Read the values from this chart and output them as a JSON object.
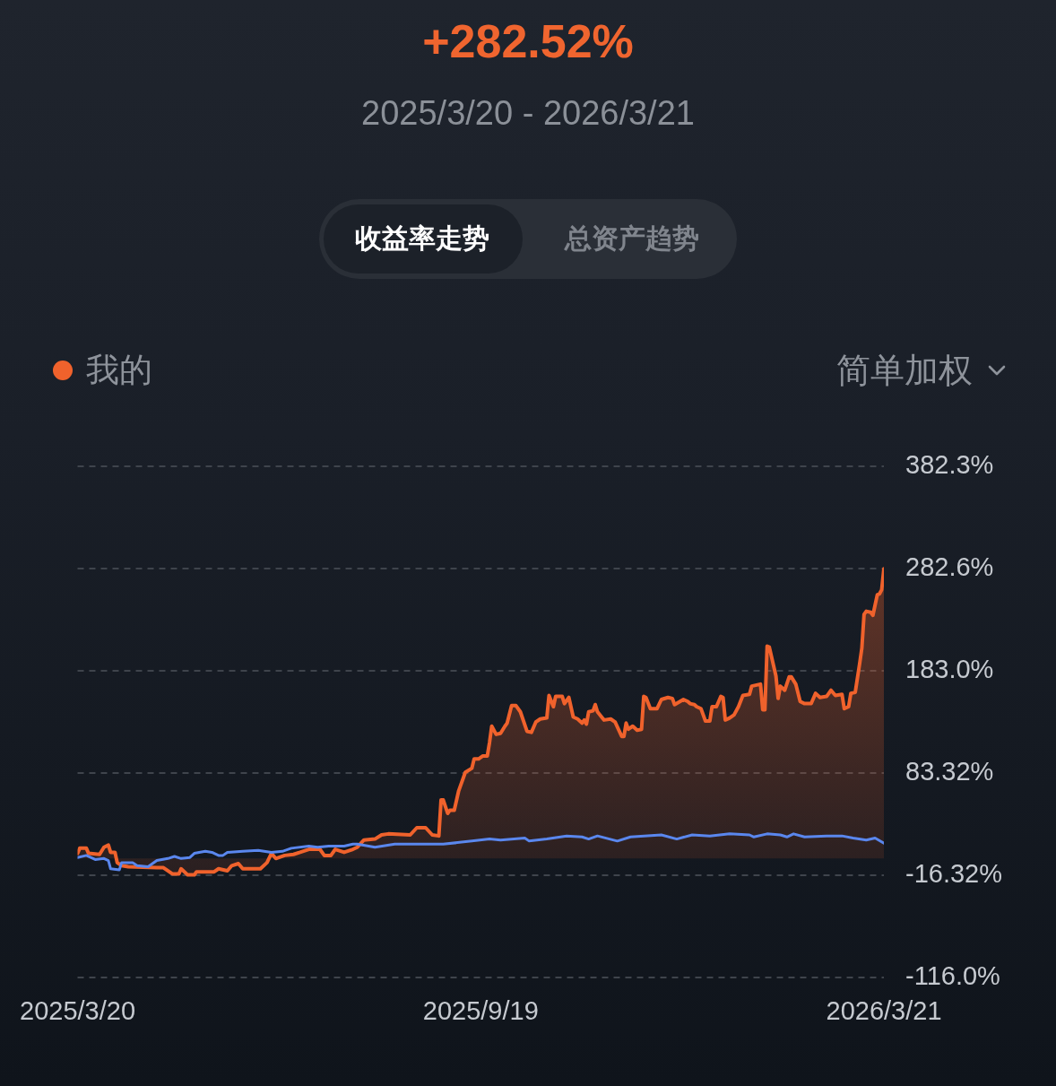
{
  "chart_data": {
    "type": "line",
    "title": "+282.52%",
    "subtitle": "2025/3/20 - 2026/3/21",
    "annotations": [
      "收益率走势",
      "总资产趋势",
      "简单加权"
    ],
    "series": [
      {
        "name": "我的",
        "type": "area",
        "color": "#f0622c",
        "x": [
          "2025-03-20",
          "2025-03-21",
          "2025-03-24",
          "2025-03-25",
          "2025-03-30",
          "2025-04-01",
          "2025-04-03",
          "2025-04-04",
          "2025-04-06",
          "2025-04-07",
          "2025-04-09",
          "2025-04-12",
          "2025-04-25",
          "2025-04-28",
          "2025-05-02",
          "2025-05-05",
          "2025-05-06",
          "2025-05-09",
          "2025-05-12",
          "2025-05-13",
          "2025-05-21",
          "2025-05-23",
          "2025-05-27",
          "2025-05-29",
          "2025-06-01",
          "2025-06-03",
          "2025-06-11",
          "2025-06-14",
          "2025-06-16",
          "2025-06-18",
          "2025-06-22",
          "2025-06-26",
          "2025-06-29",
          "2025-07-03",
          "2025-07-08",
          "2025-07-10",
          "2025-07-13",
          "2025-07-15",
          "2025-07-19",
          "2025-07-23",
          "2025-07-25",
          "2025-07-28",
          "2025-08-02",
          "2025-08-05",
          "2025-08-08",
          "2025-08-18",
          "2025-08-21",
          "2025-08-25",
          "2025-08-28",
          "2025-08-31",
          "2025-09-01",
          "2025-09-02",
          "2025-09-04",
          "2025-09-05",
          "2025-09-07",
          "2025-09-09",
          "2025-09-12",
          "2025-09-15",
          "2025-09-16",
          "2025-09-18",
          "2025-09-20",
          "2025-09-22",
          "2025-09-23",
          "2025-09-24",
          "2025-09-26",
          "2025-09-28",
          "2025-09-30",
          "2025-10-01",
          "2025-10-03",
          "2025-10-05",
          "2025-10-07",
          "2025-10-10",
          "2025-10-12",
          "2025-10-14",
          "2025-10-16",
          "2025-10-19",
          "2025-10-20",
          "2025-10-22",
          "2025-10-23",
          "2025-10-26",
          "2025-10-27",
          "2025-10-29",
          "2025-10-31",
          "2025-11-02",
          "2025-11-04",
          "2025-11-05",
          "2025-11-06",
          "2025-11-07",
          "2025-11-09",
          "2025-11-10",
          "2025-11-11",
          "2025-11-14",
          "2025-11-17",
          "2025-11-19",
          "2025-11-22",
          "2025-11-23",
          "2025-11-24",
          "2025-11-25",
          "2025-11-27",
          "2025-11-29",
          "2025-12-01",
          "2025-12-02",
          "2025-12-03",
          "2025-12-05",
          "2025-12-08",
          "2025-12-10",
          "2025-12-13",
          "2025-12-15",
          "2025-12-16",
          "2025-12-20",
          "2025-12-22",
          "2025-12-23",
          "2025-12-25",
          "2025-12-26",
          "2025-12-28",
          "2025-12-30",
          "2026-01-01",
          "2026-01-02",
          "2026-01-04",
          "2026-01-06",
          "2026-01-07",
          "2026-01-08",
          "2026-01-10",
          "2026-01-12",
          "2026-01-14",
          "2026-01-16",
          "2026-01-19",
          "2026-01-20",
          "2026-01-24",
          "2026-01-25",
          "2026-01-26",
          "2026-01-27",
          "2026-01-28",
          "2026-01-31",
          "2026-02-01",
          "2026-02-02",
          "2026-02-04",
          "2026-02-06",
          "2026-02-07",
          "2026-02-09",
          "2026-02-11",
          "2026-02-13",
          "2026-02-16",
          "2026-02-18",
          "2026-02-20",
          "2026-02-23",
          "2026-02-25",
          "2026-02-27",
          "2026-03-02",
          "2026-03-03",
          "2026-03-05",
          "2026-03-06",
          "2026-03-08",
          "2026-03-10",
          "2026-03-11",
          "2026-03-12",
          "2026-03-13",
          "2026-03-15",
          "2026-03-16",
          "2026-03-18",
          "2026-03-19",
          "2026-03-20",
          "2026-03-21"
        ],
        "values": [
          5,
          10,
          10,
          5,
          4,
          11,
          13,
          6,
          6,
          -4,
          -7,
          -8,
          -9,
          -9,
          -15,
          -15,
          -10,
          -16,
          -16,
          -13,
          -13,
          -10,
          -12,
          -7,
          -5,
          -10,
          -10,
          -4,
          5,
          0,
          3,
          4,
          6,
          9,
          9,
          3,
          3,
          9,
          6,
          9,
          11,
          18,
          19,
          23,
          24,
          23,
          30,
          30,
          23,
          22,
          57,
          57,
          44,
          47,
          47,
          66,
          84,
          88,
          97,
          97,
          100,
          100,
          113,
          129,
          121,
          122,
          129,
          132,
          149,
          149,
          143,
          124,
          123,
          133,
          136,
          137,
          159,
          148,
          158,
          158,
          151,
          157,
          138,
          136,
          132,
          135,
          131,
          143,
          144,
          150,
          143,
          135,
          136,
          133,
          119,
          119,
          132,
          126,
          129,
          125,
          126,
          158,
          157,
          146,
          146,
          155,
          157,
          156,
          150,
          155,
          153,
          151,
          150,
          148,
          146,
          134,
          134,
          148,
          148,
          158,
          157,
          135,
          137,
          140,
          148,
          159,
          160,
          168,
          170,
          145,
          145,
          207,
          206,
          178,
          156,
          168,
          164,
          177,
          177,
          170,
          153,
          151,
          151,
          161,
          157,
          158,
          164,
          159,
          160,
          146,
          148,
          161,
          162,
          190,
          205,
          238,
          241,
          240,
          237,
          257,
          258,
          262,
          282.52
        ]
      },
      {
        "type": "line",
        "color": "#5a87ee",
        "x": [
          "2025-03-20",
          "2025-03-24",
          "2025-03-28",
          "2025-04-01",
          "2025-04-03",
          "2025-04-04",
          "2025-04-08",
          "2025-04-09",
          "2025-04-14",
          "2025-04-16",
          "2025-04-21",
          "2025-04-25",
          "2025-04-30",
          "2025-05-03",
          "2025-05-06",
          "2025-05-10",
          "2025-05-12",
          "2025-05-17",
          "2025-05-20",
          "2025-05-23",
          "2025-05-25",
          "2025-05-27",
          "2025-06-03",
          "2025-06-10",
          "2025-06-16",
          "2025-06-21",
          "2025-06-25",
          "2025-07-03",
          "2025-07-07",
          "2025-07-12",
          "2025-07-19",
          "2025-07-23",
          "2025-07-25",
          "2025-08-02",
          "2025-08-11",
          "2025-08-20",
          "2025-09-02",
          "2025-09-15",
          "2025-09-23",
          "2025-09-28",
          "2025-10-09",
          "2025-10-11",
          "2025-10-19",
          "2025-10-28",
          "2025-11-04",
          "2025-11-07",
          "2025-11-11",
          "2025-11-20",
          "2025-11-26",
          "2025-12-10",
          "2025-12-17",
          "2025-12-24",
          "2026-01-01",
          "2026-01-10",
          "2026-01-19",
          "2026-01-21",
          "2026-01-27",
          "2026-02-02",
          "2026-02-05",
          "2026-02-08",
          "2026-02-13",
          "2026-02-23",
          "2026-03-02",
          "2026-03-07",
          "2026-03-13",
          "2026-03-17",
          "2026-03-21"
        ],
        "values": [
          1,
          3,
          -1,
          0,
          -2,
          -10,
          -11,
          -4,
          -4,
          -7,
          -8,
          -2,
          0,
          2,
          0,
          1,
          5,
          7,
          6,
          3,
          3,
          6,
          7,
          8,
          6,
          7,
          10,
          12,
          11,
          12,
          12,
          14,
          14,
          11,
          14,
          14,
          14,
          17,
          19,
          18,
          20,
          17,
          19,
          22,
          21,
          19,
          22,
          17,
          21,
          23,
          19,
          23,
          22,
          24,
          23,
          21,
          24,
          23,
          21,
          24,
          21,
          22,
          22,
          20,
          18,
          20,
          15
        ]
      }
    ],
    "xlim": [
      "2025-03-20",
      "2026-03-21"
    ],
    "xticks": [
      {
        "value": "2025-03-20",
        "label": "2025/3/20"
      },
      {
        "value": "2025-09-19",
        "label": "2025/9/19"
      },
      {
        "value": "2026-03-21",
        "label": "2026/3/21"
      }
    ],
    "ylim": [
      -116.0,
      382.3
    ],
    "yticks": [
      {
        "value": 382.3,
        "label": "382.3%"
      },
      {
        "value": 282.6,
        "label": "282.6%"
      },
      {
        "value": 183.0,
        "label": "183.0%"
      },
      {
        "value": 83.32,
        "label": "83.32%"
      },
      {
        "value": -16.32,
        "label": "-16.32%"
      },
      {
        "value": -116.0,
        "label": "-116.0%"
      }
    ],
    "grid": "y",
    "legend": "top left"
  }
}
